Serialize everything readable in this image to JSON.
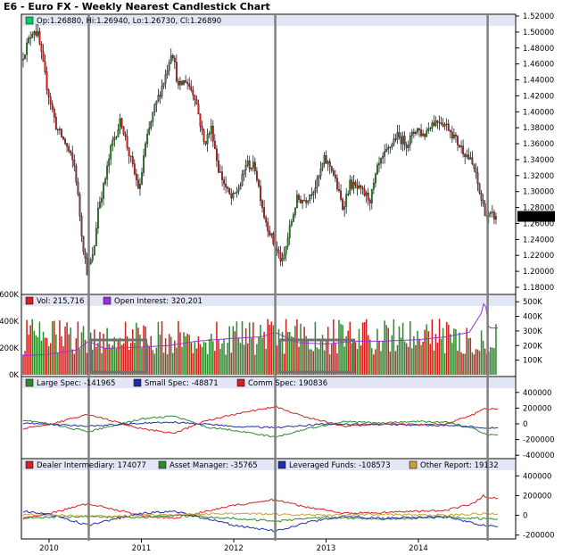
{
  "title": "E6 - Euro FX - Weekly Nearest Candlestick Chart",
  "colors": {
    "up": "#2e8b2e",
    "down": "#d42020",
    "wick": "#000000",
    "header_band": "#e3e6f5",
    "large_spec": "#2e8b2e",
    "small_spec": "#1f2fa8",
    "comm_spec": "#d42020",
    "dealer": "#d42020",
    "asset_manager": "#2e8b2e",
    "leveraged": "#1f2fa8",
    "other": "#c8a030",
    "open_interest": "#9b30d9",
    "marker_line": "#808080"
  },
  "chart_data": [
    {
      "panel": "price",
      "type": "candlestick",
      "legend_text": "Op:1.26880, Hi:1.26940, Lo:1.26730, Cl:1.26890",
      "last_price_label": "1.26890",
      "y_ticks": [
        "1.52000",
        "1.50000",
        "1.48000",
        "1.46000",
        "1.44000",
        "1.42000",
        "1.40000",
        "1.38000",
        "1.36000",
        "1.34000",
        "1.32000",
        "1.30000",
        "1.28000",
        "1.26000",
        "1.24000",
        "1.22000",
        "1.20000",
        "1.18000"
      ],
      "ylim": [
        1.18,
        1.52
      ],
      "x_ticks": [
        "2010",
        "2011",
        "2012",
        "2013",
        "2014"
      ],
      "x_tick_positions": [
        2010.0,
        2011.0,
        2012.0,
        2013.0,
        2014.0
      ],
      "xlim": [
        2009.72,
        2014.86
      ],
      "close_anchors": [
        [
          2009.72,
          1.465
        ],
        [
          2009.85,
          1.505
        ],
        [
          2009.9,
          1.495
        ],
        [
          2010.0,
          1.43
        ],
        [
          2010.1,
          1.38
        ],
        [
          2010.2,
          1.36
        ],
        [
          2010.3,
          1.33
        ],
        [
          2010.38,
          1.24
        ],
        [
          2010.43,
          1.2
        ],
        [
          2010.5,
          1.22
        ],
        [
          2010.55,
          1.28
        ],
        [
          2010.62,
          1.31
        ],
        [
          2010.7,
          1.36
        ],
        [
          2010.8,
          1.39
        ],
        [
          2010.88,
          1.35
        ],
        [
          2010.95,
          1.32
        ],
        [
          2011.0,
          1.3
        ],
        [
          2011.05,
          1.35
        ],
        [
          2011.15,
          1.4
        ],
        [
          2011.28,
          1.445
        ],
        [
          2011.35,
          1.48
        ],
        [
          2011.42,
          1.43
        ],
        [
          2011.5,
          1.44
        ],
        [
          2011.6,
          1.42
        ],
        [
          2011.7,
          1.36
        ],
        [
          2011.78,
          1.38
        ],
        [
          2011.85,
          1.33
        ],
        [
          2011.95,
          1.3
        ],
        [
          2012.0,
          1.29
        ],
        [
          2012.1,
          1.31
        ],
        [
          2012.15,
          1.335
        ],
        [
          2012.25,
          1.33
        ],
        [
          2012.35,
          1.27
        ],
        [
          2012.45,
          1.235
        ],
        [
          2012.55,
          1.21
        ],
        [
          2012.62,
          1.25
        ],
        [
          2012.7,
          1.29
        ],
        [
          2012.8,
          1.29
        ],
        [
          2012.92,
          1.31
        ],
        [
          2013.0,
          1.34
        ],
        [
          2013.08,
          1.33
        ],
        [
          2013.2,
          1.28
        ],
        [
          2013.28,
          1.31
        ],
        [
          2013.4,
          1.3
        ],
        [
          2013.5,
          1.29
        ],
        [
          2013.58,
          1.33
        ],
        [
          2013.68,
          1.35
        ],
        [
          2013.78,
          1.37
        ],
        [
          2013.9,
          1.36
        ],
        [
          2014.0,
          1.38
        ],
        [
          2014.08,
          1.37
        ],
        [
          2014.15,
          1.385
        ],
        [
          2014.25,
          1.39
        ],
        [
          2014.35,
          1.38
        ],
        [
          2014.45,
          1.36
        ],
        [
          2014.55,
          1.345
        ],
        [
          2014.62,
          1.33
        ],
        [
          2014.7,
          1.29
        ],
        [
          2014.76,
          1.269
        ]
      ],
      "marker_dates": [
        2010.43,
        2012.45,
        2014.75
      ]
    },
    {
      "panel": "volume",
      "type": "bar",
      "legend": [
        "Vol: 215,716",
        "Open Interest: 320,201"
      ],
      "y_ticks_left": [
        "600K",
        "400K",
        "200K",
        "0K"
      ],
      "ylim_left": [
        0,
        600000
      ],
      "y_ticks_right": [
        "500K",
        "400K",
        "300K",
        "200K",
        "100K"
      ],
      "ylim_right": [
        0,
        550000
      ],
      "volume_typical_range": [
        150000,
        420000
      ],
      "open_interest_anchors": [
        [
          2009.72,
          130000
        ],
        [
          2010.0,
          140000
        ],
        [
          2010.3,
          170000
        ],
        [
          2010.43,
          230000
        ],
        [
          2010.6,
          180000
        ],
        [
          2011.0,
          190000
        ],
        [
          2011.3,
          200000
        ],
        [
          2011.6,
          230000
        ],
        [
          2012.0,
          250000
        ],
        [
          2012.3,
          260000
        ],
        [
          2012.45,
          290000
        ],
        [
          2012.7,
          220000
        ],
        [
          2013.0,
          210000
        ],
        [
          2013.3,
          230000
        ],
        [
          2013.6,
          230000
        ],
        [
          2014.0,
          240000
        ],
        [
          2014.3,
          260000
        ],
        [
          2014.55,
          290000
        ],
        [
          2014.68,
          420000
        ],
        [
          2014.72,
          520000
        ],
        [
          2014.76,
          320201
        ]
      ],
      "highlight_boxes": [
        [
          2010.45,
          2011.05
        ],
        [
          2012.5,
          2013.3
        ]
      ]
    },
    {
      "panel": "legacy_cot",
      "type": "line",
      "y_ticks": [
        "400000",
        "200000",
        "0",
        "-200000",
        "-400000"
      ],
      "ylim": [
        -420000,
        420000
      ],
      "series": [
        {
          "name": "Large Spec: -141965",
          "color_key": "large_spec",
          "anchors": [
            [
              2009.72,
              50000
            ],
            [
              2010.0,
              0
            ],
            [
              2010.43,
              -100000
            ],
            [
              2010.7,
              -20000
            ],
            [
              2011.0,
              60000
            ],
            [
              2011.35,
              100000
            ],
            [
              2011.7,
              -40000
            ],
            [
              2012.0,
              -80000
            ],
            [
              2012.45,
              -170000
            ],
            [
              2012.8,
              -60000
            ],
            [
              2013.2,
              30000
            ],
            [
              2013.6,
              10000
            ],
            [
              2014.0,
              30000
            ],
            [
              2014.3,
              20000
            ],
            [
              2014.6,
              -60000
            ],
            [
              2014.76,
              -141965
            ]
          ]
        },
        {
          "name": "Small Spec: -48871",
          "color_key": "small_spec",
          "anchors": [
            [
              2009.72,
              10000
            ],
            [
              2010.43,
              -30000
            ],
            [
              2011.0,
              10000
            ],
            [
              2011.35,
              20000
            ],
            [
              2012.0,
              -30000
            ],
            [
              2012.45,
              -50000
            ],
            [
              2013.0,
              0
            ],
            [
              2013.6,
              -10000
            ],
            [
              2014.3,
              -20000
            ],
            [
              2014.76,
              -48871
            ]
          ]
        },
        {
          "name": "Comm Spec: 190836",
          "color_key": "comm_spec",
          "anchors": [
            [
              2009.72,
              -60000
            ],
            [
              2010.0,
              -10000
            ],
            [
              2010.43,
              120000
            ],
            [
              2010.7,
              30000
            ],
            [
              2011.0,
              -60000
            ],
            [
              2011.35,
              -120000
            ],
            [
              2011.7,
              40000
            ],
            [
              2012.0,
              120000
            ],
            [
              2012.45,
              220000
            ],
            [
              2012.8,
              80000
            ],
            [
              2013.2,
              -30000
            ],
            [
              2013.6,
              0
            ],
            [
              2014.0,
              -10000
            ],
            [
              2014.3,
              0
            ],
            [
              2014.6,
              120000
            ],
            [
              2014.7,
              200000
            ],
            [
              2014.76,
              190836
            ]
          ]
        }
      ]
    },
    {
      "panel": "disaggregated_cot",
      "type": "line",
      "y_ticks": [
        "400000",
        "200000",
        "0",
        "-200000"
      ],
      "ylim": [
        -230000,
        430000
      ],
      "series": [
        {
          "name": "Dealer Intermediary: 174077",
          "color_key": "dealer",
          "anchors": [
            [
              2009.72,
              -30000
            ],
            [
              2010.0,
              20000
            ],
            [
              2010.43,
              120000
            ],
            [
              2010.7,
              60000
            ],
            [
              2011.0,
              0
            ],
            [
              2011.35,
              -30000
            ],
            [
              2011.7,
              40000
            ],
            [
              2012.0,
              100000
            ],
            [
              2012.45,
              160000
            ],
            [
              2012.8,
              80000
            ],
            [
              2013.2,
              20000
            ],
            [
              2013.6,
              30000
            ],
            [
              2014.0,
              40000
            ],
            [
              2014.3,
              50000
            ],
            [
              2014.6,
              120000
            ],
            [
              2014.7,
              200000
            ],
            [
              2014.76,
              174077
            ]
          ]
        },
        {
          "name": "Asset Manager: -35765",
          "color_key": "asset_manager",
          "anchors": [
            [
              2009.72,
              -20000
            ],
            [
              2010.43,
              -10000
            ],
            [
              2011.0,
              -20000
            ],
            [
              2011.35,
              0
            ],
            [
              2012.0,
              -30000
            ],
            [
              2012.45,
              -60000
            ],
            [
              2013.0,
              -20000
            ],
            [
              2013.6,
              -40000
            ],
            [
              2014.3,
              -20000
            ],
            [
              2014.76,
              -35765
            ]
          ]
        },
        {
          "name": "Leveraged Funds: -108573",
          "color_key": "leveraged",
          "anchors": [
            [
              2009.72,
              40000
            ],
            [
              2010.0,
              10000
            ],
            [
              2010.43,
              -100000
            ],
            [
              2010.7,
              -40000
            ],
            [
              2011.0,
              20000
            ],
            [
              2011.35,
              40000
            ],
            [
              2011.7,
              -30000
            ],
            [
              2012.0,
              -100000
            ],
            [
              2012.45,
              -160000
            ],
            [
              2012.8,
              -70000
            ],
            [
              2013.2,
              -10000
            ],
            [
              2013.6,
              -30000
            ],
            [
              2014.0,
              -20000
            ],
            [
              2014.3,
              -10000
            ],
            [
              2014.6,
              -80000
            ],
            [
              2014.76,
              -108573
            ]
          ]
        },
        {
          "name": "Other Report: 19132",
          "color_key": "other",
          "anchors": [
            [
              2009.72,
              10000
            ],
            [
              2010.43,
              -10000
            ],
            [
              2011.0,
              0
            ],
            [
              2011.35,
              10000
            ],
            [
              2012.0,
              20000
            ],
            [
              2012.45,
              10000
            ],
            [
              2013.0,
              0
            ],
            [
              2013.6,
              10000
            ],
            [
              2014.3,
              0
            ],
            [
              2014.76,
              19132
            ]
          ]
        }
      ]
    }
  ]
}
